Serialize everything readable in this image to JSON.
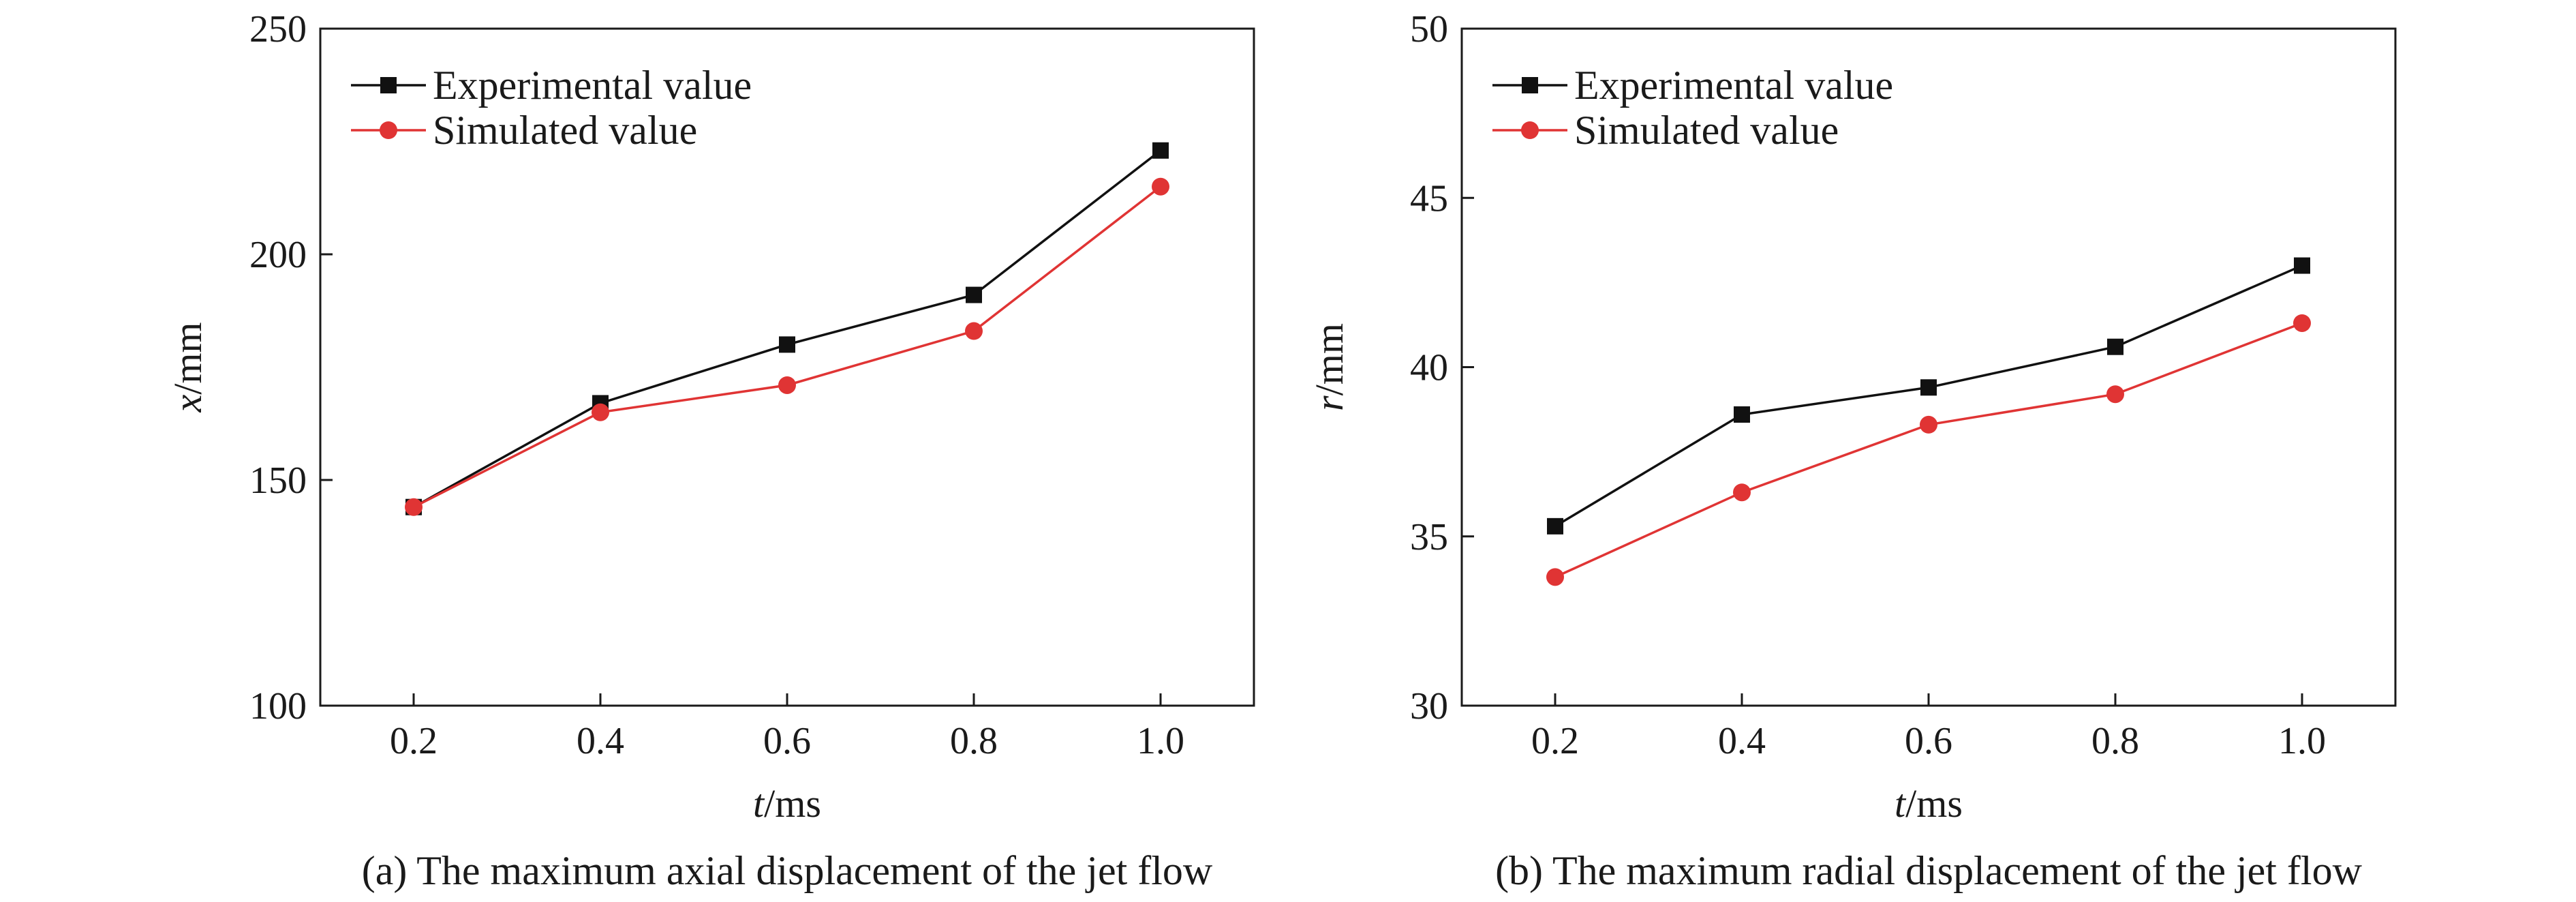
{
  "chart_data": [
    {
      "type": "line",
      "caption": "(a) The maximum axial displacement of the jet flow",
      "xlabel_var": "t",
      "xlabel_unit": "/ms",
      "ylabel_var": "x",
      "ylabel_unit": "/mm",
      "x": [
        0.2,
        0.4,
        0.6,
        0.8,
        1.0
      ],
      "x_tick_labels": [
        "0.2",
        "0.4",
        "0.6",
        "0.8",
        "1.0"
      ],
      "xlim": [
        0.1,
        1.1
      ],
      "ylim": [
        100,
        250
      ],
      "y_ticks": [
        100,
        150,
        200,
        250
      ],
      "grid": false,
      "legend_position": "top-left",
      "series": [
        {
          "name": "Experimental value",
          "values": [
            144,
            167,
            180,
            191,
            223
          ],
          "color": "#111111",
          "marker": "square"
        },
        {
          "name": "Simulated value",
          "values": [
            144,
            165,
            171,
            183,
            215
          ],
          "color": "#e03434",
          "marker": "circle"
        }
      ]
    },
    {
      "type": "line",
      "caption": "(b) The maximum radial displacement of the jet flow",
      "xlabel_var": "t",
      "xlabel_unit": "/ms",
      "ylabel_var": "r",
      "ylabel_unit": "/mm",
      "x": [
        0.2,
        0.4,
        0.6,
        0.8,
        1.0
      ],
      "x_tick_labels": [
        "0.2",
        "0.4",
        "0.6",
        "0.8",
        "1.0"
      ],
      "xlim": [
        0.1,
        1.1
      ],
      "ylim": [
        30,
        50
      ],
      "y_ticks": [
        30,
        35,
        40,
        45,
        50
      ],
      "grid": false,
      "legend_position": "top-left",
      "series": [
        {
          "name": "Experimental value",
          "values": [
            35.3,
            38.6,
            39.4,
            40.6,
            43.0
          ],
          "color": "#111111",
          "marker": "square"
        },
        {
          "name": "Simulated value",
          "values": [
            33.8,
            36.3,
            38.3,
            39.2,
            41.3
          ],
          "color": "#e03434",
          "marker": "circle"
        }
      ]
    }
  ]
}
